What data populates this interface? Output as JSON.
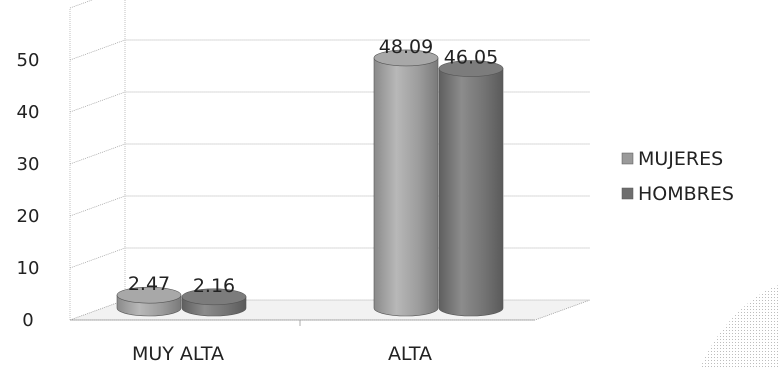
{
  "chart_data": {
    "type": "bar",
    "style": "3d-cylinder",
    "categories": [
      "MUY ALTA",
      "ALTA"
    ],
    "series": [
      {
        "name": "MUJERES",
        "values": [
          2.47,
          48.09
        ]
      },
      {
        "name": "HOMBRES",
        "values": [
          2.16,
          46.05
        ]
      }
    ],
    "data_labels": [
      [
        "2.47",
        "48.09"
      ],
      [
        "2.16",
        "46.05"
      ]
    ],
    "ylim": [
      0,
      60
    ],
    "yticks": [
      0,
      10,
      20,
      30,
      40,
      50
    ],
    "grid": true,
    "legend_position": "right",
    "xlabel": "",
    "ylabel": "",
    "title": ""
  },
  "colors": {
    "series": [
      "#9a9a9a",
      "#6e6e6e"
    ],
    "grid": "#9a9a9a",
    "text": "#222222"
  }
}
